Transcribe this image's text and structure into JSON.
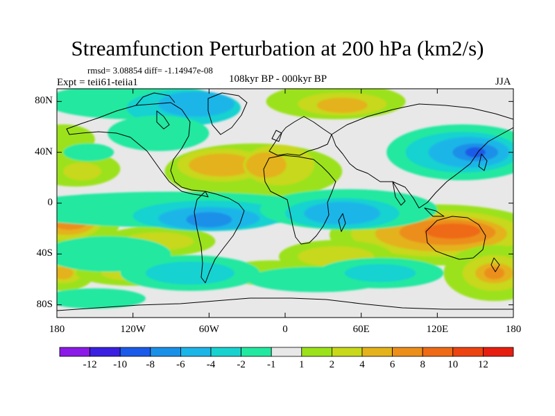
{
  "title": "Streamfunction Perturbation at 200 hPa (km2/s)",
  "stats": "rmsd= 3.08854 diff= -1.14947e-08",
  "experiment": "Expt = teii61-teiia1",
  "period": "108kyr BP - 000kyr BP",
  "season": "JJA",
  "y_ticks": [
    "80N",
    "40N",
    "0",
    "40S",
    "80S"
  ],
  "x_ticks": [
    "180",
    "120W",
    "60W",
    "0",
    "60E",
    "120E",
    "180"
  ],
  "colorbar": {
    "labels": [
      "-12",
      "-10",
      "-8",
      "-6",
      "-4",
      "-2",
      "-1",
      "1",
      "2",
      "4",
      "6",
      "8",
      "10",
      "12"
    ],
    "colors": [
      "#8b1ae6",
      "#3a1fe0",
      "#1a5ae8",
      "#1a8fe8",
      "#1cb5e8",
      "#18d2d0",
      "#22e8a0",
      "#e8e8e8",
      "#9be21a",
      "#c8d81a",
      "#e4b21a",
      "#ec8e1a",
      "#ee6a16",
      "#ec4410",
      "#e61e10"
    ]
  },
  "map": {
    "lon_range": [
      -180,
      180
    ],
    "lat_range": [
      -90,
      90
    ],
    "field_colors": {
      "neutral": "#e8e8e8",
      "pos1": "#9be21a",
      "pos2": "#c8d81a",
      "pos3": "#e4b21a",
      "pos4": "#ec8e1a",
      "pos5": "#ee6a16",
      "neg1": "#22e8a0",
      "neg2": "#18d2d0",
      "neg3": "#1cb5e8",
      "neg4": "#1a8fe8",
      "neg5": "#1a5ae8"
    }
  }
}
